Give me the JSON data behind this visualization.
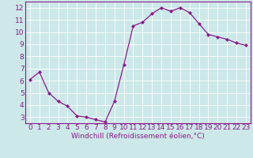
{
  "x": [
    0,
    1,
    2,
    3,
    4,
    5,
    6,
    7,
    8,
    9,
    10,
    11,
    12,
    13,
    14,
    15,
    16,
    17,
    18,
    19,
    20,
    21,
    22,
    23
  ],
  "y": [
    6.1,
    6.7,
    5.0,
    4.3,
    3.9,
    3.1,
    3.0,
    2.8,
    2.6,
    4.3,
    7.3,
    10.5,
    10.8,
    11.5,
    12.0,
    11.7,
    12.0,
    11.6,
    10.7,
    9.8,
    9.6,
    9.4,
    9.1,
    8.9
  ],
  "line_color": "#8B1A8B",
  "marker": "D",
  "marker_size": 2.0,
  "bg_color": "#cce8e8",
  "grid_color": "#b0d0d0",
  "xlabel": "Windchill (Refroidissement éolien,°C)",
  "xlim": [
    -0.5,
    23.5
  ],
  "ylim": [
    2.5,
    12.5
  ],
  "yticks": [
    3,
    4,
    5,
    6,
    7,
    8,
    9,
    10,
    11,
    12
  ],
  "xticks": [
    0,
    1,
    2,
    3,
    4,
    5,
    6,
    7,
    8,
    9,
    10,
    11,
    12,
    13,
    14,
    15,
    16,
    17,
    18,
    19,
    20,
    21,
    22,
    23
  ],
  "tick_color": "#8B1A8B",
  "xlabel_fontsize": 6.5,
  "tick_fontsize": 6.5,
  "line_width": 0.9
}
